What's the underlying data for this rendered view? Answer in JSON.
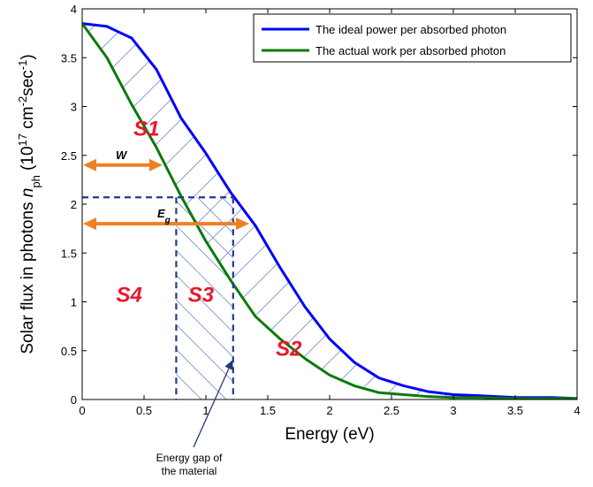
{
  "chart_data": {
    "type": "line",
    "title": "",
    "xlabel": "Energy (eV)",
    "ylabel": {
      "main": "Solar flux in photons ",
      "sym": "n",
      "sub": "ph",
      "unit_open": " (10",
      "exp1": "17",
      "unit_mid": " cm",
      "exp2": "-2",
      "unit_mid2": "sec",
      "exp3": "-1",
      "unit_close": ")"
    },
    "xlim": [
      0,
      4
    ],
    "ylim": [
      0,
      4
    ],
    "xticks": [
      "0",
      "0.5",
      "1",
      "1.5",
      "2",
      "2.5",
      "3",
      "3.5",
      "4"
    ],
    "yticks": [
      "0",
      "0.5",
      "1",
      "1.5",
      "2",
      "2.5",
      "3",
      "3.5",
      "4"
    ],
    "legend_position": "top-right",
    "series": [
      {
        "name": "The ideal power per absorbed photon",
        "color": "#0000ff",
        "x": [
          0,
          0.2,
          0.4,
          0.6,
          0.8,
          1.0,
          1.2,
          1.4,
          1.6,
          1.8,
          2.0,
          2.2,
          2.4,
          2.6,
          2.8,
          3.0,
          3.2,
          3.5,
          3.8,
          4.0
        ],
        "y": [
          3.85,
          3.82,
          3.7,
          3.38,
          2.88,
          2.52,
          2.12,
          1.78,
          1.35,
          0.95,
          0.62,
          0.38,
          0.22,
          0.14,
          0.08,
          0.05,
          0.04,
          0.02,
          0.02,
          0.01
        ]
      },
      {
        "name": "The actual work per absorbed photon",
        "color": "#0a7a0a",
        "x": [
          0,
          0.2,
          0.4,
          0.6,
          0.8,
          1.0,
          1.2,
          1.4,
          1.6,
          1.8,
          2.0,
          2.2,
          2.4,
          2.6,
          2.8,
          3.0,
          3.2,
          3.5,
          3.8,
          4.0
        ],
        "y": [
          3.85,
          3.5,
          3.02,
          2.58,
          2.08,
          1.62,
          1.22,
          0.85,
          0.62,
          0.42,
          0.25,
          0.14,
          0.07,
          0.05,
          0.03,
          0.02,
          0.02,
          0.01,
          0.01,
          0.01
        ]
      }
    ],
    "dashed_box": {
      "x1": 0,
      "x2": 1.22,
      "y": 2.07,
      "x_left": 0.76
    },
    "arrows": [
      {
        "label": "W",
        "x1": 0,
        "x2": 0.65,
        "y": 2.4
      },
      {
        "label": "E",
        "label_sub": "g",
        "x1": 0,
        "x2": 1.35,
        "y": 1.8
      }
    ],
    "regions": [
      {
        "label": "S1",
        "x": 0.52,
        "y": 2.7
      },
      {
        "label": "S2",
        "x": 1.67,
        "y": 0.45
      },
      {
        "label": "S3",
        "x": 0.96,
        "y": 1.0
      },
      {
        "label": "S4",
        "x": 0.38,
        "y": 1.0
      }
    ],
    "annotation": {
      "lines": [
        "Energy gap of",
        "the material"
      ],
      "arrow_to": {
        "x": 1.22,
        "y": 0.45
      }
    }
  }
}
